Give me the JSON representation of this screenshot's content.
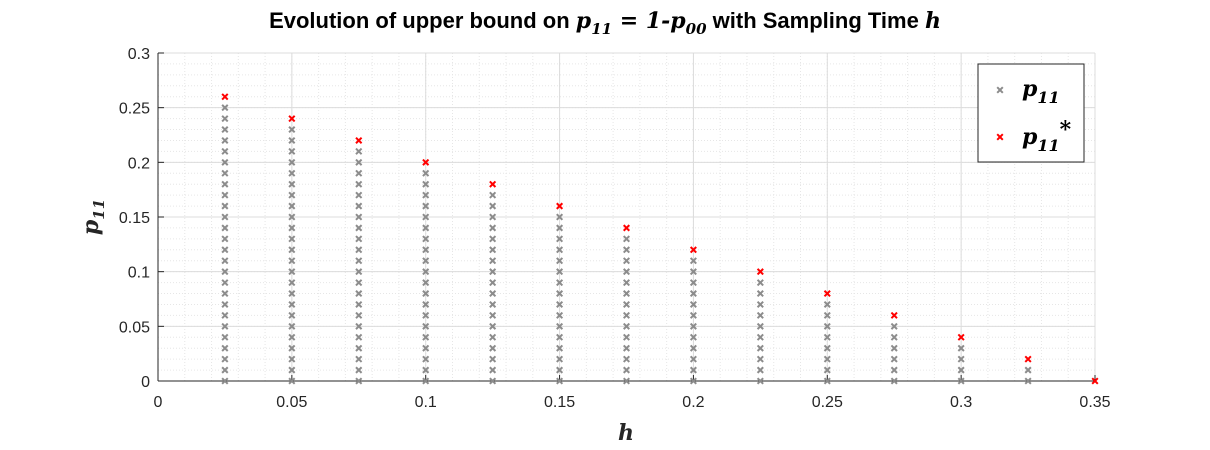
{
  "chart_data": {
    "type": "scatter",
    "title": {
      "prefix": "Evolution of upper bound on ",
      "p_var": "p",
      "p_sub": "11",
      "eq": " = 1-",
      "p2_var": "p",
      "p2_sub": "00",
      "suffix": " with Sampling Time ",
      "h_var": "h"
    },
    "xlabel": "h",
    "ylabel": {
      "var": "p",
      "sub": "11"
    },
    "xlim": [
      0,
      0.35
    ],
    "ylim": [
      0,
      0.3
    ],
    "xticks": [
      "0",
      "0.05",
      "0.1",
      "0.15",
      "0.2",
      "0.25",
      "0.3",
      "0.35"
    ],
    "xtick_values": [
      0,
      0.05,
      0.1,
      0.15,
      0.2,
      0.25,
      0.3,
      0.35
    ],
    "yticks": [
      "0",
      "0.05",
      "0.1",
      "0.15",
      "0.2",
      "0.25",
      "0.3"
    ],
    "ytick_values": [
      0,
      0.05,
      0.1,
      0.15,
      0.2,
      0.25,
      0.3
    ],
    "grid": true,
    "minor_grid": true,
    "legend_location": "top-right",
    "series": [
      {
        "name": "p11",
        "label_var": "p",
        "label_sub": "11",
        "label_sup": "",
        "color": "#8c8c8c",
        "marker": "x",
        "x": [
          0.025,
          0.05,
          0.075,
          0.1,
          0.125,
          0.15,
          0.175,
          0.2,
          0.225,
          0.25,
          0.275,
          0.3,
          0.325
        ],
        "y_step": 0.01,
        "y_max": [
          0.25,
          0.23,
          0.21,
          0.19,
          0.17,
          0.15,
          0.13,
          0.11,
          0.09,
          0.07,
          0.05,
          0.03,
          0.01
        ]
      },
      {
        "name": "p11*",
        "label_var": "p",
        "label_sub": "11",
        "label_sup": "*",
        "color": "#ff0000",
        "marker": "x",
        "x": [
          0.025,
          0.05,
          0.075,
          0.1,
          0.125,
          0.15,
          0.175,
          0.2,
          0.225,
          0.25,
          0.275,
          0.3,
          0.325,
          0.35
        ],
        "y": [
          0.26,
          0.24,
          0.22,
          0.2,
          0.18,
          0.16,
          0.14,
          0.12,
          0.1,
          0.08,
          0.06,
          0.04,
          0.02,
          0
        ]
      }
    ]
  }
}
